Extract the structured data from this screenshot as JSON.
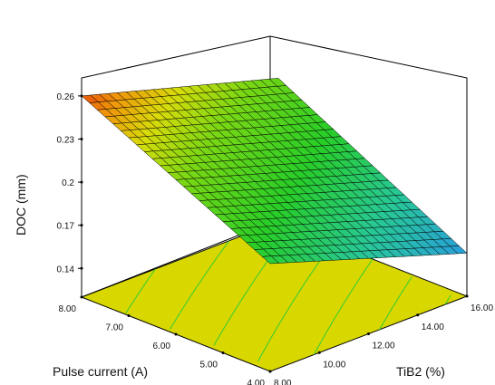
{
  "chart_data": {
    "type": "surface3d",
    "zlabel": "DOC (mm)",
    "xlabel": "TiB2 (%)",
    "ylabel": "Pulse current (A)",
    "x_range": [
      8,
      16
    ],
    "y_range": [
      4,
      8
    ],
    "z_ticks": [
      "0.14",
      "0.17",
      "0.2",
      "0.23",
      "0.26"
    ],
    "x_ticks": [
      "8.00",
      "10.00",
      "12.00",
      "14.00",
      "16.00"
    ],
    "y_ticks": [
      "4.00",
      "5.00",
      "6.00",
      "7.00",
      "8.00"
    ],
    "corner_values": [
      {
        "x": 8,
        "y": 8,
        "z": 0.26
      },
      {
        "x": 16,
        "y": 8,
        "z": 0.22
      },
      {
        "x": 16,
        "y": 4,
        "z": 0.15
      },
      {
        "x": 8,
        "y": 4,
        "z": 0.195
      }
    ],
    "contour_levels": [
      0.155,
      0.17,
      0.185,
      0.2,
      0.215,
      0.23,
      0.245
    ],
    "colors": {
      "floor": "#d8d800",
      "floor_contour": "#33cc33",
      "high": "#e03000",
      "mid": "#20c820",
      "low": "#2090e8"
    }
  }
}
